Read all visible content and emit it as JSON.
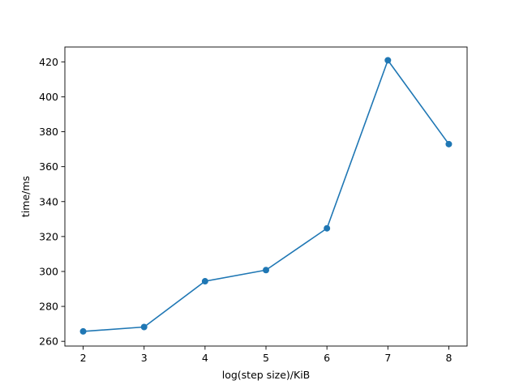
{
  "chart_data": {
    "type": "line",
    "title": "",
    "xlabel": "log(step size)/KiB",
    "ylabel": "time/ms",
    "xlim": [
      1.7,
      8.3
    ],
    "ylim": [
      257.3,
      428.5
    ],
    "xticks": [
      2,
      3,
      4,
      5,
      6,
      7,
      8
    ],
    "yticks": [
      260,
      280,
      300,
      320,
      340,
      360,
      380,
      400,
      420
    ],
    "grid": false,
    "legend": "none",
    "series": [
      {
        "color": "#1f77b4",
        "marker": "circle",
        "x": [
          2,
          3,
          4,
          5,
          6,
          7,
          8
        ],
        "y": [
          265.7,
          268.2,
          294.4,
          300.8,
          324.7,
          420.9,
          372.9
        ]
      }
    ]
  }
}
